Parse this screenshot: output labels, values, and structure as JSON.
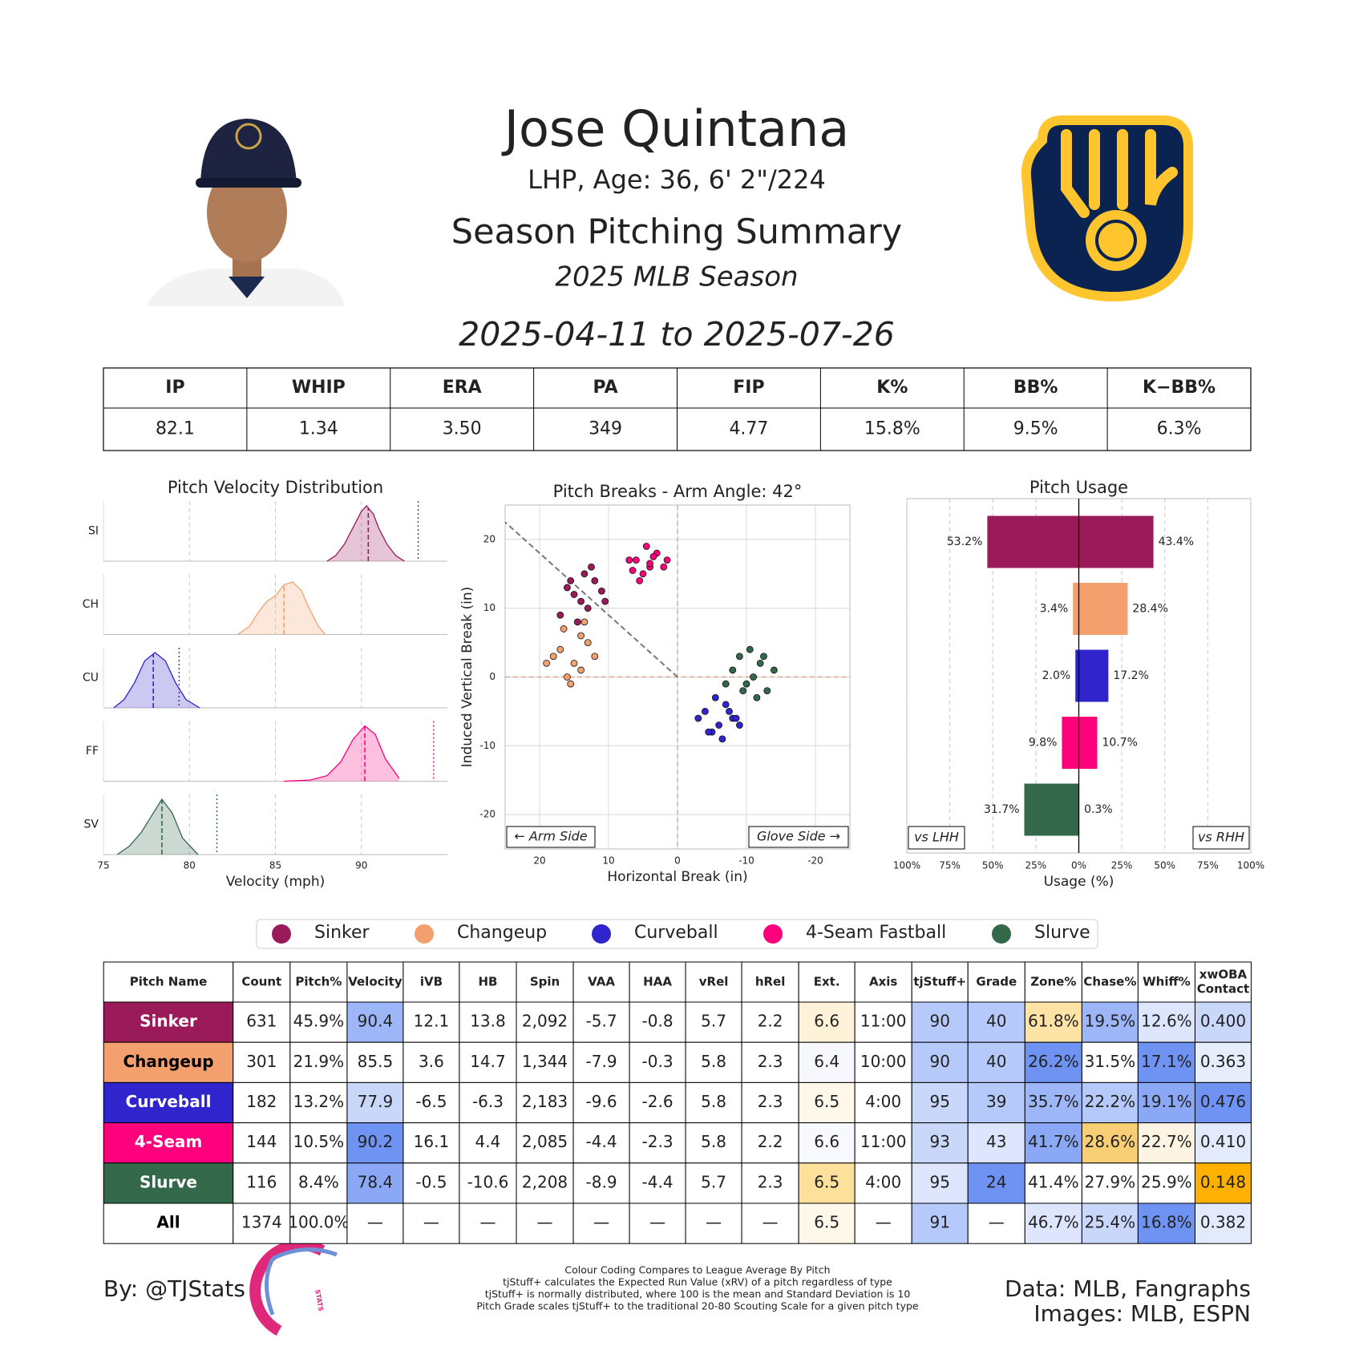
{
  "header": {
    "title": "Jose Quintana",
    "subtitle": "LHP, Age: 36, 6' 2\"/224",
    "heading": "Season Pitching Summary",
    "season": "2025 MLB Season",
    "date_range": "2025-04-11 to 2025-07-26"
  },
  "stats_table": {
    "columns": [
      "IP",
      "WHIP",
      "ERA",
      "PA",
      "FIP",
      "K%",
      "BB%",
      "K−BB%"
    ],
    "rows": [
      [
        "82.1",
        "1.34",
        "3.50",
        "349",
        "4.77",
        "15.8%",
        "9.5%",
        "6.3%"
      ]
    ]
  },
  "chart_data": [
    {
      "type": "density",
      "title": "Pitch Velocity Distribution",
      "x_label": "Velocity (mph)",
      "xlim": [
        75,
        95
      ],
      "xticks": [
        75,
        80,
        85,
        90
      ],
      "ylim": [
        0,
        1
      ],
      "grid": true,
      "series": [
        {
          "name": "SI",
          "color": "#9b1b5a",
          "x": [
            88,
            88.5,
            89,
            89.5,
            90,
            90.3,
            90.7,
            91,
            91.5,
            92,
            92.5
          ],
          "values": [
            0,
            0.1,
            0.3,
            0.6,
            0.9,
            1,
            0.85,
            0.6,
            0.3,
            0.1,
            0
          ],
          "mean": 90.4,
          "reference": 93.3
        },
        {
          "name": "CH",
          "color": "#f4a06e",
          "x": [
            82.8,
            83.5,
            84,
            84.5,
            85,
            85.5,
            86,
            86.5,
            87,
            87.5,
            87.9
          ],
          "values": [
            0,
            0.15,
            0.4,
            0.6,
            0.7,
            0.9,
            0.95,
            0.8,
            0.45,
            0.15,
            0
          ],
          "mean": 85.5
        },
        {
          "name": "CU",
          "color": "#3024cc",
          "x": [
            75.6,
            76.2,
            76.8,
            77.4,
            78,
            78.6,
            79.2,
            79.8,
            80.6
          ],
          "values": [
            0,
            0.15,
            0.45,
            0.85,
            1,
            0.85,
            0.45,
            0.15,
            0
          ],
          "mean": 77.9,
          "reference": 79.4
        },
        {
          "name": "FF",
          "color": "#ff007d",
          "x": [
            85.5,
            87,
            88,
            88.8,
            89.5,
            90.2,
            90.8,
            91.4,
            92.2
          ],
          "values": [
            0,
            0.02,
            0.1,
            0.35,
            0.75,
            1,
            0.85,
            0.4,
            0.05
          ],
          "mean": 90.2,
          "reference": 94.2
        },
        {
          "name": "SV",
          "color": "#33684a",
          "x": [
            75.8,
            76.5,
            77.2,
            77.8,
            78.4,
            79,
            79.6,
            80.5
          ],
          "values": [
            0,
            0.15,
            0.4,
            0.7,
            1,
            0.75,
            0.3,
            0
          ],
          "mean": 78.4,
          "reference": 81.6
        }
      ]
    },
    {
      "type": "scatter",
      "title": "Pitch Breaks - Arm Angle: 42°",
      "x_label": "Horizontal Break (in)",
      "y_label": "Induced Vertical Break (in)",
      "xlim": [
        25,
        -25
      ],
      "ylim": [
        -25,
        25
      ],
      "xticks": [
        20,
        10,
        0,
        -10,
        -20
      ],
      "yticks": [
        -20,
        -10,
        0,
        10,
        20
      ],
      "grid": true,
      "arm_angle": 42,
      "annotations": [
        "← Arm Side",
        "Glove Side →"
      ],
      "series": [
        {
          "name": "Sinker",
          "color": "#9b1b5a",
          "x": [
            16,
            14,
            12,
            13,
            15,
            11,
            13.5,
            17,
            10.5,
            14.5,
            12.5,
            15.5
          ],
          "values": [
            13,
            11,
            14,
            10,
            12,
            12.5,
            15,
            9,
            11,
            8,
            16,
            14
          ]
        },
        {
          "name": "Changeup",
          "color": "#f4a06e",
          "x": [
            17,
            15,
            13,
            16,
            14,
            18,
            12,
            15.5,
            16.5,
            14,
            19,
            13.5
          ],
          "values": [
            4,
            2,
            5,
            0,
            6,
            3,
            3,
            -1,
            7,
            1,
            2,
            8
          ]
        },
        {
          "name": "Curveball",
          "color": "#3024cc",
          "x": [
            -4,
            -6,
            -8,
            -5,
            -7,
            -3,
            -9,
            -6.5,
            -5.5,
            -7.5,
            -4.5,
            -8.5
          ],
          "values": [
            -5,
            -7,
            -6,
            -8,
            -4,
            -6,
            -7,
            -9,
            -3,
            -5,
            -8,
            -6
          ]
        },
        {
          "name": "4-Seam Fastball",
          "color": "#ff007d",
          "x": [
            6,
            4,
            3,
            5,
            2,
            7,
            4.5,
            5.5,
            3.5,
            6.5,
            1.5,
            4
          ],
          "values": [
            17,
            16,
            18,
            15,
            16,
            17,
            19,
            14,
            17.5,
            15.5,
            17,
            16.5
          ]
        },
        {
          "name": "Slurve",
          "color": "#33684a",
          "x": [
            -8,
            -10,
            -12,
            -9,
            -11,
            -13,
            -10.5,
            -7,
            -14,
            -11.5,
            -9.5,
            -12.5
          ],
          "values": [
            1,
            -1,
            2,
            3,
            0,
            -2,
            4,
            -1,
            1,
            -3,
            -2,
            3
          ]
        }
      ]
    },
    {
      "type": "diverging_bar",
      "title": "Pitch Usage",
      "x_label": "Usage (%)",
      "xlim": [
        -100,
        100
      ],
      "xticks": [
        {
          "value": -100,
          "label": "100%"
        },
        {
          "value": -75,
          "label": "75%"
        },
        {
          "value": -50,
          "label": "50%"
        },
        {
          "value": -25,
          "label": "25%"
        },
        {
          "value": 0,
          "label": "0%"
        },
        {
          "value": 25,
          "label": "25%"
        },
        {
          "value": 50,
          "label": "50%"
        },
        {
          "value": 75,
          "label": "75%"
        },
        {
          "value": 100,
          "label": "100%"
        }
      ],
      "grid": true,
      "colors": [
        "#9b1b5a",
        "#f4a06e",
        "#3024cc",
        "#ff007d",
        "#33684a"
      ],
      "series": [
        {
          "name": "vs LHH",
          "values": [
            53.2,
            3.4,
            2.0,
            9.8,
            31.7
          ],
          "value_labels": [
            "53.2%",
            "3.4%",
            "2.0%",
            "9.8%",
            "31.7%"
          ]
        },
        {
          "name": "vs RHH",
          "values": [
            43.4,
            28.4,
            17.2,
            10.7,
            0.3
          ],
          "value_labels": [
            "43.4%",
            "28.4%",
            "17.2%",
            "10.7%",
            "0.3%"
          ]
        }
      ]
    }
  ],
  "pitch_table": {
    "columns": [
      "Pitch Name",
      "Count",
      "Pitch%",
      "Velocity",
      "iVB",
      "HB",
      "Spin",
      "VAA",
      "HAA",
      "vRel",
      "hRel",
      "Ext.",
      "Axis",
      "tjStuff+",
      "Grade",
      "Zone%",
      "Chase%",
      "Whiff%",
      [
        "xwOBA",
        "Contact"
      ]
    ],
    "rows": [
      [
        "Sinker",
        "631",
        "45.9%",
        "90.4",
        "12.1",
        "13.8",
        "2,092",
        "-5.7",
        "-0.8",
        "5.7",
        "2.2",
        "6.6",
        "11:00",
        "90",
        "40",
        "61.8%",
        "19.5%",
        "12.6%",
        "0.400"
      ],
      [
        "Changeup",
        "301",
        "21.9%",
        "85.5",
        "3.6",
        "14.7",
        "1,344",
        "-7.9",
        "-0.3",
        "5.8",
        "2.3",
        "6.4",
        "10:00",
        "90",
        "40",
        "26.2%",
        "31.5%",
        "17.1%",
        "0.363"
      ],
      [
        "Curveball",
        "182",
        "13.2%",
        "77.9",
        "-6.5",
        "-6.3",
        "2,183",
        "-9.6",
        "-2.6",
        "5.8",
        "2.3",
        "6.5",
        "4:00",
        "95",
        "39",
        "35.7%",
        "22.2%",
        "19.1%",
        "0.476"
      ],
      [
        "4-Seam",
        "144",
        "10.5%",
        "90.2",
        "16.1",
        "4.4",
        "2,085",
        "-4.4",
        "-2.3",
        "5.8",
        "2.2",
        "6.6",
        "11:00",
        "93",
        "43",
        "41.7%",
        "28.6%",
        "22.7%",
        "0.410"
      ],
      [
        "Slurve",
        "116",
        "8.4%",
        "78.4",
        "-0.5",
        "-10.6",
        "2,208",
        "-8.9",
        "-4.4",
        "5.7",
        "2.3",
        "6.5",
        "4:00",
        "95",
        "24",
        "41.4%",
        "27.9%",
        "25.9%",
        "0.148"
      ],
      [
        "All",
        "1374",
        "100.0%",
        "—",
        "—",
        "—",
        "—",
        "—",
        "—",
        "—",
        "—",
        "6.5",
        "—",
        "91",
        "—",
        "46.7%",
        "25.4%",
        "16.8%",
        "0.382"
      ]
    ],
    "cell_colors": [
      [
        "#9b1b5a",
        "#ffffff",
        "#ffffff",
        "#9db6f8",
        "#ffffff",
        "#ffffff",
        "#ffffff",
        "#ffffff",
        "#ffffff",
        "#ffffff",
        "#ffffff",
        "#fef3d8",
        "#ffffff",
        "#b6c9fb",
        "#b6c9fb",
        "#fde3a6",
        "#9db6f8",
        "#dde6fc",
        "#c9d7fb"
      ],
      [
        "#f4a06e",
        "#ffffff",
        "#ffffff",
        "#ffffff",
        "#ffffff",
        "#ffffff",
        "#ffffff",
        "#ffffff",
        "#ffffff",
        "#ffffff",
        "#ffffff",
        "#f6f8fe",
        "#ffffff",
        "#b6c9fb",
        "#b6c9fb",
        "#6f93f2",
        "#ffffff",
        "#6f93f2",
        "#e6edfd"
      ],
      [
        "#3024cc",
        "#ffffff",
        "#ffffff",
        "#c9d7fb",
        "#ffffff",
        "#ffffff",
        "#ffffff",
        "#ffffff",
        "#ffffff",
        "#ffffff",
        "#ffffff",
        "#fef8ea",
        "#ffffff",
        "#c9d7fb",
        "#b6c9fb",
        "#9db6f8",
        "#b6c9fb",
        "#8aa8f6",
        "#6f93f2"
      ],
      [
        "#ff007d",
        "#ffffff",
        "#ffffff",
        "#6f93f2",
        "#ffffff",
        "#ffffff",
        "#ffffff",
        "#ffffff",
        "#ffffff",
        "#ffffff",
        "#ffffff",
        "#f8f9fe",
        "#ffffff",
        "#c9d7fb",
        "#dde6fc",
        "#8aa8f6",
        "#f9cf75",
        "#fdf4e3",
        "#e3eafc"
      ],
      [
        "#33684a",
        "#ffffff",
        "#ffffff",
        "#8aa8f6",
        "#ffffff",
        "#ffffff",
        "#ffffff",
        "#ffffff",
        "#ffffff",
        "#ffffff",
        "#ffffff",
        "#fde09a",
        "#ffffff",
        "#dde6fc",
        "#6f93f2",
        "#ffffff",
        "#ffffff",
        "#ffffff",
        "#ffb000"
      ],
      [
        "#ffffff",
        "#ffffff",
        "#ffffff",
        "#ffffff",
        "#ffffff",
        "#ffffff",
        "#ffffff",
        "#ffffff",
        "#ffffff",
        "#ffffff",
        "#ffffff",
        "#fef8ea",
        "#ffffff",
        "#b6c9fb",
        "#ffffff",
        "#dde6fc",
        "#c9d7fb",
        "#6f93f2",
        "#e3eafc"
      ]
    ],
    "name_text_colors": [
      "#ffffff",
      "#000000",
      "#ffffff",
      "#ffffff",
      "#ffffff",
      "#000000"
    ]
  },
  "footer": {
    "credit": "By: @TJStats",
    "logo_text": "STATS",
    "notes": [
      "Colour Coding Compares to League Average By Pitch",
      "tjStuff+ calculates the Expected Run Value (xRV) of a pitch regardless of type",
      "tjStuff+ is normally distributed, where 100 is the mean and Standard Deviation is 10",
      "Pitch Grade scales tjStuff+ to the traditional 20-80 Scouting Scale for a given pitch type"
    ],
    "sources": [
      "Data: MLB, Fangraphs",
      "Images: MLB, ESPN"
    ]
  }
}
